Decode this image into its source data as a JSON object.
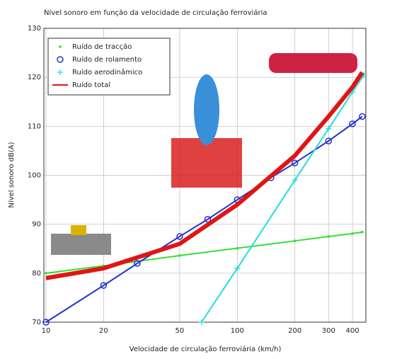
{
  "chart_data": {
    "type": "line",
    "title": "Nível sonoro em função da velocidade de circulação ferroviária",
    "x_label": "Velocidade de circulação ferroviária (km/h)",
    "y_label": "Nível sonoro dB(A)",
    "xscale": "log",
    "xlim": [
      9.75,
      470
    ],
    "xticks": [
      10,
      20,
      50,
      100,
      200,
      300,
      400
    ],
    "ylim": [
      70,
      130
    ],
    "yticks": [
      70,
      80,
      90,
      100,
      110,
      120,
      130
    ],
    "grid": true,
    "legend": "top-left",
    "series": [
      {
        "name": "Ruído de tracção",
        "color": "#33dd33",
        "marker": "dot",
        "x": [
          10,
          20,
          50,
          100,
          200,
          300,
          400,
          450
        ],
        "values": [
          80,
          81.5,
          83.6,
          85.1,
          86.6,
          87.5,
          88.1,
          88.4
        ]
      },
      {
        "name": "Ruído de rolamento",
        "color": "#2233cc",
        "marker": "circle",
        "x": [
          10,
          20,
          30,
          50,
          70,
          100,
          150,
          200,
          300,
          400,
          450
        ],
        "values": [
          70,
          77.5,
          82,
          87.5,
          91,
          95,
          99.5,
          102.5,
          107,
          110.5,
          112
        ]
      },
      {
        "name": "Ruído aerodinâmico",
        "color": "#22dddd",
        "marker": "plus",
        "x": [
          65,
          100,
          200,
          300,
          400,
          460
        ],
        "values": [
          70,
          81,
          99,
          109.5,
          117,
          120.5
        ]
      },
      {
        "name": "Ruído total",
        "color": "#e01515",
        "marker": "none",
        "x": [
          10,
          20,
          50,
          100,
          200,
          300,
          400,
          450
        ],
        "values": [
          79,
          81,
          86,
          94,
          104,
          112,
          118,
          121
        ]
      }
    ]
  }
}
